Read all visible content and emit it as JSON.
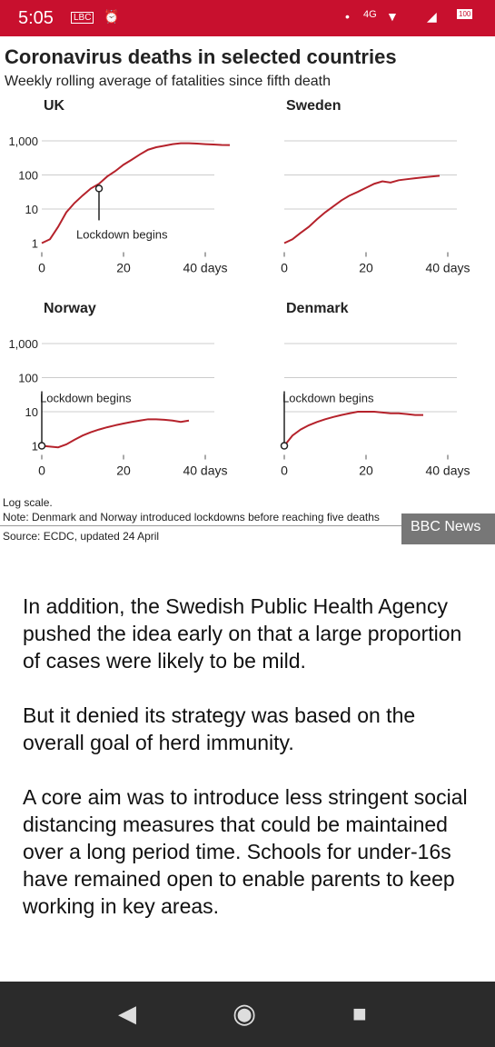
{
  "status_bar": {
    "time": "5:05",
    "badge": "LBC",
    "network": "4G",
    "battery": "100"
  },
  "figure": {
    "title": "Coronavirus deaths in selected countries",
    "subtitle": "Weekly rolling average of fatalities since fifth death",
    "note_log": "Log scale.",
    "note_lockdown": "Note: Denmark and Norway introduced lockdowns before reaching five deaths",
    "source": "Source: ECDC, updated 24 April",
    "brand": "BBC News"
  },
  "chart_data": [
    {
      "type": "line",
      "title": "UK",
      "ylabel": "",
      "xlabel": "",
      "yscale": "log",
      "ylim": [
        1,
        1000
      ],
      "yticks": [
        "1,000",
        "100",
        "10",
        "1"
      ],
      "xticks": [
        "0",
        "20",
        "40 days"
      ],
      "annotation": "Lockdown begins",
      "series": [
        {
          "x": [
            0,
            2,
            4,
            6,
            8,
            10,
            12,
            14,
            16,
            18,
            20,
            22,
            24,
            26,
            28,
            30,
            32,
            34,
            36,
            38,
            40,
            42,
            44,
            46
          ],
          "y": [
            1,
            1.3,
            3,
            8,
            15,
            25,
            40,
            55,
            90,
            130,
            200,
            280,
            400,
            550,
            650,
            720,
            800,
            850,
            850,
            830,
            800,
            780,
            760,
            750
          ]
        }
      ],
      "marker": {
        "x": 14,
        "y": 40
      }
    },
    {
      "type": "line",
      "title": "Sweden",
      "ylabel": "",
      "xlabel": "",
      "yscale": "log",
      "ylim": [
        1,
        1000
      ],
      "xticks": [
        "0",
        "20",
        "40 days"
      ],
      "series": [
        {
          "x": [
            0,
            2,
            4,
            6,
            8,
            10,
            12,
            14,
            16,
            18,
            20,
            22,
            24,
            26,
            28,
            30,
            32,
            34,
            36,
            38
          ],
          "y": [
            1,
            1.3,
            2,
            3,
            5,
            8,
            12,
            18,
            25,
            32,
            42,
            55,
            65,
            60,
            70,
            75,
            80,
            85,
            90,
            95
          ]
        }
      ]
    },
    {
      "type": "line",
      "title": "Norway",
      "ylabel": "",
      "xlabel": "",
      "yscale": "log",
      "ylim": [
        1,
        1000
      ],
      "yticks": [
        "1,000",
        "100",
        "10",
        "1"
      ],
      "xticks": [
        "0",
        "20",
        "40 days"
      ],
      "annotation": "Lockdown begins",
      "series": [
        {
          "x": [
            0,
            2,
            4,
            6,
            8,
            10,
            12,
            14,
            16,
            18,
            20,
            22,
            24,
            26,
            28,
            30,
            32,
            34,
            36
          ],
          "y": [
            1,
            0.95,
            0.9,
            1.1,
            1.5,
            2,
            2.5,
            3,
            3.5,
            4,
            4.5,
            5,
            5.5,
            6,
            6,
            5.8,
            5.5,
            5,
            5.5
          ]
        }
      ],
      "marker": {
        "x": 0,
        "y": 1
      }
    },
    {
      "type": "line",
      "title": "Denmark",
      "ylabel": "",
      "xlabel": "",
      "yscale": "log",
      "ylim": [
        1,
        1000
      ],
      "xticks": [
        "0",
        "20",
        "40 days"
      ],
      "annotation": "Lockdown begins",
      "series": [
        {
          "x": [
            0,
            2,
            4,
            6,
            8,
            10,
            12,
            14,
            16,
            18,
            20,
            22,
            24,
            26,
            28,
            30,
            32,
            34
          ],
          "y": [
            1,
            2,
            3,
            4,
            5,
            6,
            7,
            8,
            9,
            10,
            10,
            10,
            9.5,
            9,
            9,
            8.5,
            8,
            8
          ]
        }
      ],
      "marker": {
        "x": 0,
        "y": 1
      }
    }
  ],
  "article": [
    "In addition, the Swedish Public Health Agency pushed the idea early on that a large proportion of cases were likely to be mild.",
    "But it denied its strategy was based on the overall goal of herd immunity.",
    "A core aim was to introduce less stringent social distancing measures that could be maintained over a long period time. Schools for under-16s have remained open to enable parents to keep working in key areas."
  ],
  "nav": {
    "back": "◀",
    "home": "◉",
    "recents": "■"
  }
}
